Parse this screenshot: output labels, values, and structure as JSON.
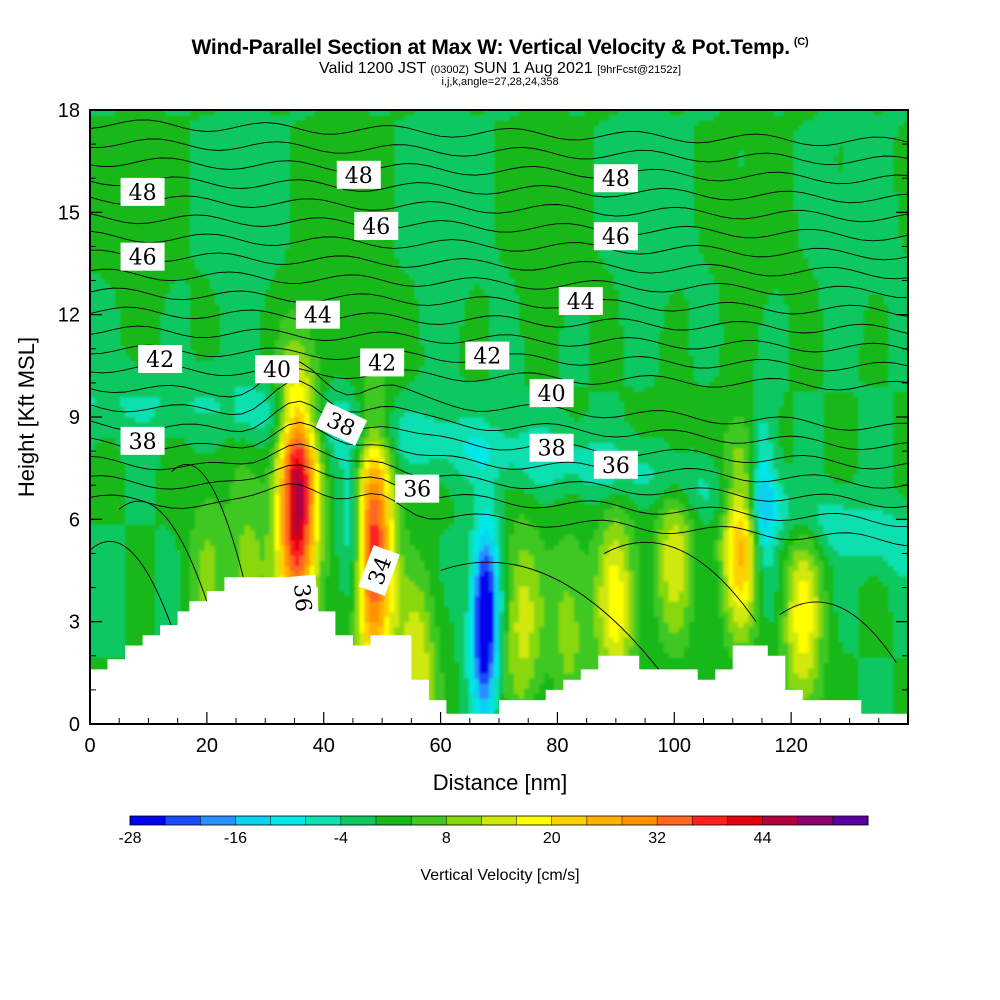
{
  "chart_data": {
    "type": "heatmap",
    "title": "Wind-Parallel Section at Max W: Vertical Velocity & Pot.Temp.",
    "title_mark": "(C)",
    "subtitle": {
      "prefix": "Valid 1200 JST",
      "utc": "(0300Z)",
      "date": "SUN 1 Aug 2021",
      "forecast": "[9hrFcst@2152z]"
    },
    "indices": "i,j,k,angle=27,28,24,358",
    "xlabel": "Distance [nm]",
    "ylabel": "Height [Kft MSL]",
    "xlim": [
      0,
      140
    ],
    "ylim": [
      0,
      18
    ],
    "x_ticks": [
      "0",
      "20",
      "40",
      "60",
      "80",
      "100",
      "120"
    ],
    "y_ticks": [
      "0",
      "3",
      "6",
      "9",
      "12",
      "15",
      "18"
    ],
    "colorbar": {
      "label": "Vertical Velocity [cm/s]",
      "tick_labels": [
        "-28",
        "-16",
        "-4",
        "8",
        "20",
        "32",
        "44"
      ],
      "levels": [
        -28,
        -24,
        -20,
        -16,
        -12,
        -8,
        -4,
        0,
        4,
        8,
        12,
        16,
        20,
        24,
        28,
        32,
        36,
        40,
        44,
        48,
        52
      ],
      "colors": [
        "#0000f0",
        "#1a4cff",
        "#2890ff",
        "#10d0f0",
        "#00e8e8",
        "#10e0b0",
        "#10c860",
        "#18b818",
        "#40c820",
        "#88d810",
        "#d0e810",
        "#ffff00",
        "#ffd000",
        "#ffb000",
        "#ff9000",
        "#ff6820",
        "#ff2020",
        "#e00010",
        "#b00040",
        "#8a0070",
        "#5a00a0"
      ]
    },
    "background_w": 0,
    "updrafts": [
      {
        "x": 35.5,
        "z": 6.5,
        "w": 47
      },
      {
        "x": 48.5,
        "z": 5.0,
        "w": 40
      },
      {
        "x": 111.5,
        "z": 5.5,
        "w": 26
      },
      {
        "x": 90,
        "z": 3.5,
        "w": 18
      },
      {
        "x": 100,
        "z": 5.0,
        "w": 14
      },
      {
        "x": 56,
        "z": 1.5,
        "w": 16
      },
      {
        "x": 122,
        "z": 3.0,
        "w": 18
      },
      {
        "x": 74,
        "z": 3.0,
        "w": 14
      },
      {
        "x": 82,
        "z": 3.0,
        "w": 10
      },
      {
        "x": 27,
        "z": 4.5,
        "w": 10
      },
      {
        "x": 20,
        "z": 4.5,
        "w": 8
      }
    ],
    "downdrafts": [
      {
        "x": 67.5,
        "z": 2.8,
        "w": -28
      },
      {
        "x": 45,
        "z": 5.5,
        "w": -14
      },
      {
        "x": 115,
        "z": 6.5,
        "w": -16
      },
      {
        "x": 68,
        "z": 4.0,
        "w": -8
      }
    ],
    "theta_labels": [
      {
        "text": "48",
        "x": 9,
        "z": 15.6
      },
      {
        "text": "48",
        "x": 46,
        "z": 16.1
      },
      {
        "text": "48",
        "x": 90,
        "z": 16.0
      },
      {
        "text": "46",
        "x": 9,
        "z": 13.7
      },
      {
        "text": "46",
        "x": 49,
        "z": 14.6
      },
      {
        "text": "46",
        "x": 90,
        "z": 14.3
      },
      {
        "text": "44",
        "x": 39,
        "z": 12.0
      },
      {
        "text": "44",
        "x": 84,
        "z": 12.4
      },
      {
        "text": "42",
        "x": 12,
        "z": 10.7
      },
      {
        "text": "42",
        "x": 50,
        "z": 10.6
      },
      {
        "text": "42",
        "x": 68,
        "z": 10.8
      },
      {
        "text": "40",
        "x": 32,
        "z": 10.4
      },
      {
        "text": "40",
        "x": 79,
        "z": 9.7
      },
      {
        "text": "38",
        "x": 9,
        "z": 8.3
      },
      {
        "text": "38",
        "x": 43,
        "z": 8.8
      },
      {
        "text": "38",
        "x": 79,
        "z": 8.1
      },
      {
        "text": "36",
        "x": 56,
        "z": 6.9
      },
      {
        "text": "36",
        "x": 90,
        "z": 7.6
      },
      {
        "text": "36",
        "x": 36.5,
        "z": 3.7
      },
      {
        "text": "34",
        "x": 49.5,
        "z": 4.5
      }
    ],
    "terrain": [
      [
        0,
        1.6
      ],
      [
        3,
        1.6
      ],
      [
        3,
        1.9
      ],
      [
        6,
        1.9
      ],
      [
        6,
        2.3
      ],
      [
        9,
        2.3
      ],
      [
        9,
        2.6
      ],
      [
        12,
        2.6
      ],
      [
        12,
        2.9
      ],
      [
        15,
        2.9
      ],
      [
        15,
        3.3
      ],
      [
        17,
        3.3
      ],
      [
        17,
        3.6
      ],
      [
        20,
        3.6
      ],
      [
        20,
        3.9
      ],
      [
        23,
        3.9
      ],
      [
        23,
        4.3
      ],
      [
        26,
        4.3
      ],
      [
        26,
        4.3
      ],
      [
        36,
        4.3
      ],
      [
        36,
        4.0
      ],
      [
        39,
        4.0
      ],
      [
        39,
        3.3
      ],
      [
        42,
        3.3
      ],
      [
        42,
        2.6
      ],
      [
        45,
        2.6
      ],
      [
        45,
        2.3
      ],
      [
        48,
        2.3
      ],
      [
        48,
        2.6
      ],
      [
        55,
        2.6
      ],
      [
        55,
        1.3
      ],
      [
        58,
        1.3
      ],
      [
        58,
        0.7
      ],
      [
        61,
        0.7
      ],
      [
        61,
        0.3
      ],
      [
        66,
        0.3
      ],
      [
        66,
        0.3
      ],
      [
        70,
        0.3
      ],
      [
        70,
        0.7
      ],
      [
        78,
        0.7
      ],
      [
        78,
        1.0
      ],
      [
        81,
        1.0
      ],
      [
        81,
        1.3
      ],
      [
        84,
        1.3
      ],
      [
        84,
        1.6
      ],
      [
        87,
        1.6
      ],
      [
        87,
        2.0
      ],
      [
        94,
        2.0
      ],
      [
        94,
        1.6
      ],
      [
        104,
        1.6
      ],
      [
        104,
        1.3
      ],
      [
        107,
        1.3
      ],
      [
        107,
        1.6
      ],
      [
        110,
        1.6
      ],
      [
        110,
        2.3
      ],
      [
        116,
        2.3
      ],
      [
        116,
        2.0
      ],
      [
        119,
        2.0
      ],
      [
        119,
        1.0
      ],
      [
        122,
        1.0
      ],
      [
        122,
        0.7
      ],
      [
        127,
        0.7
      ],
      [
        127,
        0.7
      ],
      [
        132,
        0.7
      ],
      [
        132,
        0.3
      ],
      [
        140,
        0.3
      ]
    ]
  }
}
